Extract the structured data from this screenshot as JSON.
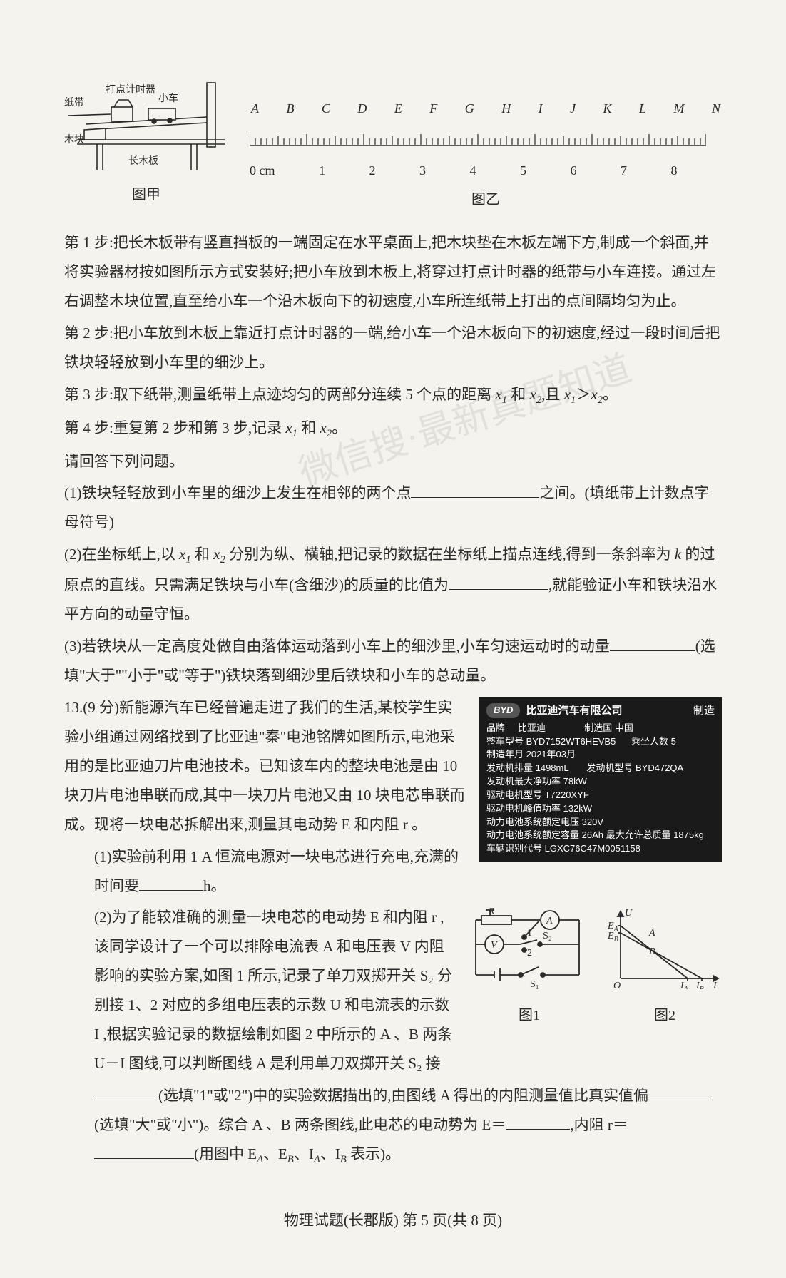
{
  "figures": {
    "apparatus": {
      "labels": {
        "tape": "纸带",
        "timer": "打点计时器",
        "cart": "小车",
        "block": "木块",
        "board": "长木板"
      },
      "caption": "图甲",
      "stroke": "#2a2a2a",
      "fill_light": "#f5f3ee"
    },
    "ruler": {
      "letters": [
        "A",
        "B",
        "C",
        "D",
        "E",
        "F",
        "G",
        "H",
        "I",
        "J",
        "K",
        "L",
        "M",
        "N"
      ],
      "unit_label": "0  cm",
      "numbers": [
        "1",
        "2",
        "3",
        "4",
        "5",
        "6",
        "7",
        "8"
      ],
      "caption": "图乙",
      "major_ticks": 8,
      "minor_per_major": 10,
      "tick_height_major": 16,
      "tick_height_minor": 10,
      "stroke": "#2a2a2a"
    },
    "circuit": {
      "caption": "图1",
      "labels": {
        "A": "A",
        "V": "V",
        "R": "R",
        "S1": "S₁",
        "S2": "S₂",
        "pos1": "1",
        "pos2": "2"
      },
      "stroke": "#2a2a2a"
    },
    "graph": {
      "caption": "图2",
      "axes": {
        "x": "I",
        "y": "U"
      },
      "labels": {
        "EA": "E",
        "EAsub": "A",
        "EB": "E",
        "EBsub": "B",
        "IA": "I",
        "IAsub": "A",
        "IB": "I",
        "IBsub": "B",
        "A": "A",
        "B": "B",
        "O": "O"
      },
      "line_color": "#2a2a2a"
    },
    "nameplate": {
      "logo": "BYD",
      "company": "比亚迪汽车有限公司",
      "make": "制造",
      "rows": [
        "品牌     比亚迪               制造国 中国",
        "整车型号 BYD7152WT6HEVB5      乘坐人数 5",
        "制造年月 2021年03月",
        "发动机排量 1498mL       发动机型号 BYD472QA",
        "发动机最大净功率 78kW",
        "驱动电机型号 T7220XYF",
        "驱动电机峰值功率 132kW",
        "动力电池系统额定电压 320V",
        "动力电池系统额定容量 26Ah 最大允许总质量 1875kg",
        "车辆识别代号 LGXC76C47M0051158"
      ]
    }
  },
  "steps": {
    "s1": "第 1 步:把长木板带有竖直挡板的一端固定在水平桌面上,把木块垫在木板左端下方,制成一个斜面,并将实验器材按如图所示方式安装好;把小车放到木板上,将穿过打点计时器的纸带与小车连接。通过左右调整木块位置,直至给小车一个沿木板向下的初速度,小车所连纸带上打出的点间隔均匀为止。",
    "s2": "第 2 步:把小车放到木板上靠近打点计时器的一端,给小车一个沿木板向下的初速度,经过一段时间后把铁块轻轻放到小车里的细沙上。",
    "s3a": "第 3 步:取下纸带,测量纸带上点迹均匀的两部分连续 5 个点的距离 ",
    "s3b": " 和 ",
    "s3c": ",且 ",
    "s3d": "。",
    "s4a": "第 4 步:重复第 2 步和第 3 步,记录 ",
    "s4b": " 和 ",
    "s4c": "。",
    "answer_prompt": "请回答下列问题。"
  },
  "q12": {
    "q1a": "(1)铁块轻轻放到小车里的细沙上发生在相邻的两个点",
    "q1b": "之间。(填纸带上计数点字母符号)",
    "q2a": "(2)在坐标纸上,以 ",
    "q2b": " 和 ",
    "q2c": " 分别为纵、横轴,把记录的数据在坐标纸上描点连线,得到一条斜率为 ",
    "q2d": " 的过原点的直线。只需满足铁块与小车(含细沙)的质量的比值为",
    "q2e": ",就能验证小车和铁块沿水平方向的动量守恒。",
    "q3a": "(3)若铁块从一定高度处做自由落体运动落到小车上的细沙里,小车匀速运动时的动量",
    "q3b": "(选填\"大于\"\"小于\"或\"等于\")铁块落到细沙里后铁块和小车的总动量。"
  },
  "q13": {
    "head": "13.(9 分)新能源汽车已经普遍走进了我们的生活,某校学生实验小组通过网络找到了比亚迪\"秦\"电池铭牌如图所示,电池采用的是比亚迪刀片电池技术。已知该车内的整块电池是由 10 块刀片电池串联而成,其中一块刀片电池又由 10 块电芯串联而成。现将一块电芯拆解出来,测量其电动势 E 和内阻 r 。",
    "q1a": "(1)实验前利用 1 A 恒流电源对一块电芯进行充电,充满的时间要",
    "q1b": "h。",
    "q2a": "(2)为了能较准确的测量一块电芯的电动势 E 和内阻 r ,该同学设计了一个可以排除电流表 A 和电压表 V 内阻影响的实验方案,如图 1 所示,记录了单刀双掷开关 S₂ 分别接 1、2 对应的多组电压表的示数 U 和电流表的示数 I ,根据实验记录的数据绘制如图 2 中所示的 A 、B 两条 U－I 图线,可以判断图线 A 是利用单刀双掷开关 S₂ 接",
    "q2b": "(选填\"1\"或\"2\")中的实验数据描出的,由图线 A 得出的内阻测量值比真实值偏",
    "q2c": "(选填\"大\"或\"小\")。综合 A 、B 两条图线,此电芯的电动势为 E＝",
    "q2d": ",内阻 r＝",
    "q2e": "(用图中 E",
    "q2f": "、E",
    "q2g": "、I",
    "q2h": "、I",
    "q2i": " 表示)。"
  },
  "vars": {
    "x1": "x",
    "x1sub": "1",
    "x2": "x",
    "x2sub": "2",
    "k": "k",
    "A": "A",
    "B": "B"
  },
  "footer": "物理试题(长郡版) 第 5 页(共 8 页)",
  "watermark": "微信搜·最新真题知道"
}
